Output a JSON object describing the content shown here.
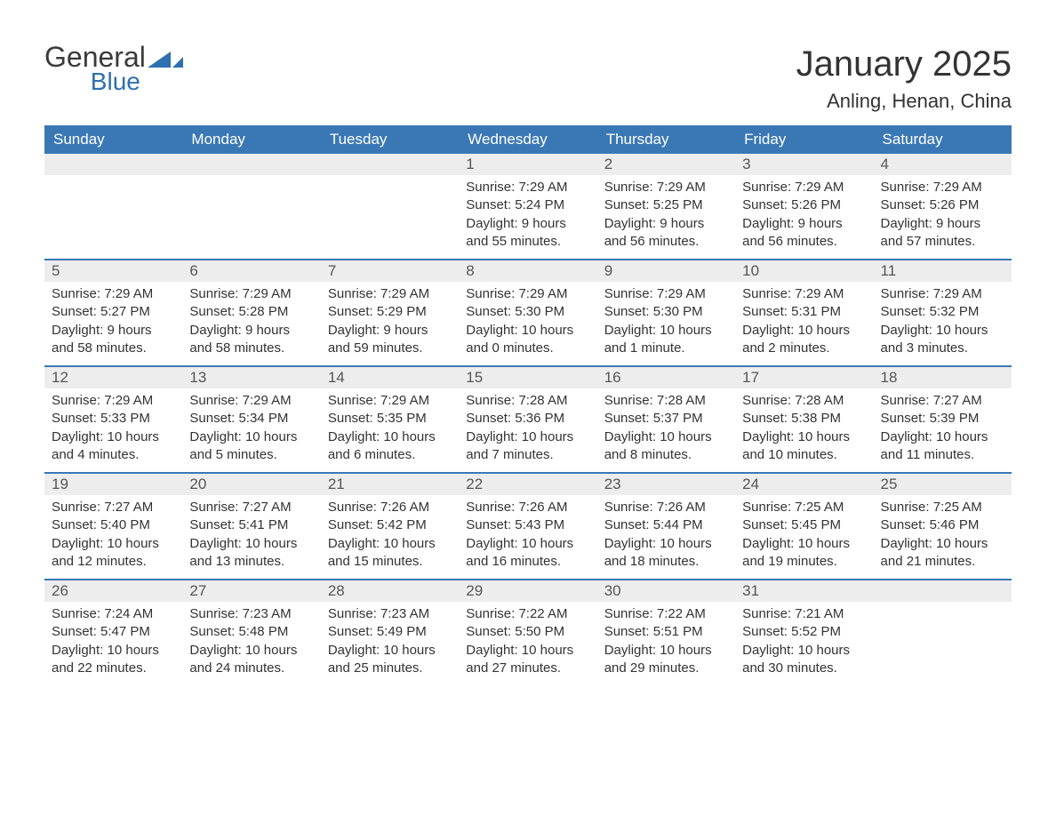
{
  "logo": {
    "general": "General",
    "blue": "Blue",
    "flag_color": "#2f6fb0"
  },
  "title": {
    "month": "January 2025",
    "location": "Anling, Henan, China"
  },
  "colors": {
    "header_bg": "#3a78b5",
    "header_text": "#ffffff",
    "daynum_bg": "#ededed",
    "border": "#3a78b5",
    "text": "#333333"
  },
  "weekdays": [
    "Sunday",
    "Monday",
    "Tuesday",
    "Wednesday",
    "Thursday",
    "Friday",
    "Saturday"
  ],
  "weeks": [
    [
      {
        "num": "",
        "sunrise": "",
        "sunset": "",
        "daylight1": "",
        "daylight2": ""
      },
      {
        "num": "",
        "sunrise": "",
        "sunset": "",
        "daylight1": "",
        "daylight2": ""
      },
      {
        "num": "",
        "sunrise": "",
        "sunset": "",
        "daylight1": "",
        "daylight2": ""
      },
      {
        "num": "1",
        "sunrise": "Sunrise: 7:29 AM",
        "sunset": "Sunset: 5:24 PM",
        "daylight1": "Daylight: 9 hours",
        "daylight2": "and 55 minutes."
      },
      {
        "num": "2",
        "sunrise": "Sunrise: 7:29 AM",
        "sunset": "Sunset: 5:25 PM",
        "daylight1": "Daylight: 9 hours",
        "daylight2": "and 56 minutes."
      },
      {
        "num": "3",
        "sunrise": "Sunrise: 7:29 AM",
        "sunset": "Sunset: 5:26 PM",
        "daylight1": "Daylight: 9 hours",
        "daylight2": "and 56 minutes."
      },
      {
        "num": "4",
        "sunrise": "Sunrise: 7:29 AM",
        "sunset": "Sunset: 5:26 PM",
        "daylight1": "Daylight: 9 hours",
        "daylight2": "and 57 minutes."
      }
    ],
    [
      {
        "num": "5",
        "sunrise": "Sunrise: 7:29 AM",
        "sunset": "Sunset: 5:27 PM",
        "daylight1": "Daylight: 9 hours",
        "daylight2": "and 58 minutes."
      },
      {
        "num": "6",
        "sunrise": "Sunrise: 7:29 AM",
        "sunset": "Sunset: 5:28 PM",
        "daylight1": "Daylight: 9 hours",
        "daylight2": "and 58 minutes."
      },
      {
        "num": "7",
        "sunrise": "Sunrise: 7:29 AM",
        "sunset": "Sunset: 5:29 PM",
        "daylight1": "Daylight: 9 hours",
        "daylight2": "and 59 minutes."
      },
      {
        "num": "8",
        "sunrise": "Sunrise: 7:29 AM",
        "sunset": "Sunset: 5:30 PM",
        "daylight1": "Daylight: 10 hours",
        "daylight2": "and 0 minutes."
      },
      {
        "num": "9",
        "sunrise": "Sunrise: 7:29 AM",
        "sunset": "Sunset: 5:30 PM",
        "daylight1": "Daylight: 10 hours",
        "daylight2": "and 1 minute."
      },
      {
        "num": "10",
        "sunrise": "Sunrise: 7:29 AM",
        "sunset": "Sunset: 5:31 PM",
        "daylight1": "Daylight: 10 hours",
        "daylight2": "and 2 minutes."
      },
      {
        "num": "11",
        "sunrise": "Sunrise: 7:29 AM",
        "sunset": "Sunset: 5:32 PM",
        "daylight1": "Daylight: 10 hours",
        "daylight2": "and 3 minutes."
      }
    ],
    [
      {
        "num": "12",
        "sunrise": "Sunrise: 7:29 AM",
        "sunset": "Sunset: 5:33 PM",
        "daylight1": "Daylight: 10 hours",
        "daylight2": "and 4 minutes."
      },
      {
        "num": "13",
        "sunrise": "Sunrise: 7:29 AM",
        "sunset": "Sunset: 5:34 PM",
        "daylight1": "Daylight: 10 hours",
        "daylight2": "and 5 minutes."
      },
      {
        "num": "14",
        "sunrise": "Sunrise: 7:29 AM",
        "sunset": "Sunset: 5:35 PM",
        "daylight1": "Daylight: 10 hours",
        "daylight2": "and 6 minutes."
      },
      {
        "num": "15",
        "sunrise": "Sunrise: 7:28 AM",
        "sunset": "Sunset: 5:36 PM",
        "daylight1": "Daylight: 10 hours",
        "daylight2": "and 7 minutes."
      },
      {
        "num": "16",
        "sunrise": "Sunrise: 7:28 AM",
        "sunset": "Sunset: 5:37 PM",
        "daylight1": "Daylight: 10 hours",
        "daylight2": "and 8 minutes."
      },
      {
        "num": "17",
        "sunrise": "Sunrise: 7:28 AM",
        "sunset": "Sunset: 5:38 PM",
        "daylight1": "Daylight: 10 hours",
        "daylight2": "and 10 minutes."
      },
      {
        "num": "18",
        "sunrise": "Sunrise: 7:27 AM",
        "sunset": "Sunset: 5:39 PM",
        "daylight1": "Daylight: 10 hours",
        "daylight2": "and 11 minutes."
      }
    ],
    [
      {
        "num": "19",
        "sunrise": "Sunrise: 7:27 AM",
        "sunset": "Sunset: 5:40 PM",
        "daylight1": "Daylight: 10 hours",
        "daylight2": "and 12 minutes."
      },
      {
        "num": "20",
        "sunrise": "Sunrise: 7:27 AM",
        "sunset": "Sunset: 5:41 PM",
        "daylight1": "Daylight: 10 hours",
        "daylight2": "and 13 minutes."
      },
      {
        "num": "21",
        "sunrise": "Sunrise: 7:26 AM",
        "sunset": "Sunset: 5:42 PM",
        "daylight1": "Daylight: 10 hours",
        "daylight2": "and 15 minutes."
      },
      {
        "num": "22",
        "sunrise": "Sunrise: 7:26 AM",
        "sunset": "Sunset: 5:43 PM",
        "daylight1": "Daylight: 10 hours",
        "daylight2": "and 16 minutes."
      },
      {
        "num": "23",
        "sunrise": "Sunrise: 7:26 AM",
        "sunset": "Sunset: 5:44 PM",
        "daylight1": "Daylight: 10 hours",
        "daylight2": "and 18 minutes."
      },
      {
        "num": "24",
        "sunrise": "Sunrise: 7:25 AM",
        "sunset": "Sunset: 5:45 PM",
        "daylight1": "Daylight: 10 hours",
        "daylight2": "and 19 minutes."
      },
      {
        "num": "25",
        "sunrise": "Sunrise: 7:25 AM",
        "sunset": "Sunset: 5:46 PM",
        "daylight1": "Daylight: 10 hours",
        "daylight2": "and 21 minutes."
      }
    ],
    [
      {
        "num": "26",
        "sunrise": "Sunrise: 7:24 AM",
        "sunset": "Sunset: 5:47 PM",
        "daylight1": "Daylight: 10 hours",
        "daylight2": "and 22 minutes."
      },
      {
        "num": "27",
        "sunrise": "Sunrise: 7:23 AM",
        "sunset": "Sunset: 5:48 PM",
        "daylight1": "Daylight: 10 hours",
        "daylight2": "and 24 minutes."
      },
      {
        "num": "28",
        "sunrise": "Sunrise: 7:23 AM",
        "sunset": "Sunset: 5:49 PM",
        "daylight1": "Daylight: 10 hours",
        "daylight2": "and 25 minutes."
      },
      {
        "num": "29",
        "sunrise": "Sunrise: 7:22 AM",
        "sunset": "Sunset: 5:50 PM",
        "daylight1": "Daylight: 10 hours",
        "daylight2": "and 27 minutes."
      },
      {
        "num": "30",
        "sunrise": "Sunrise: 7:22 AM",
        "sunset": "Sunset: 5:51 PM",
        "daylight1": "Daylight: 10 hours",
        "daylight2": "and 29 minutes."
      },
      {
        "num": "31",
        "sunrise": "Sunrise: 7:21 AM",
        "sunset": "Sunset: 5:52 PM",
        "daylight1": "Daylight: 10 hours",
        "daylight2": "and 30 minutes."
      },
      {
        "num": "",
        "sunrise": "",
        "sunset": "",
        "daylight1": "",
        "daylight2": ""
      }
    ]
  ]
}
